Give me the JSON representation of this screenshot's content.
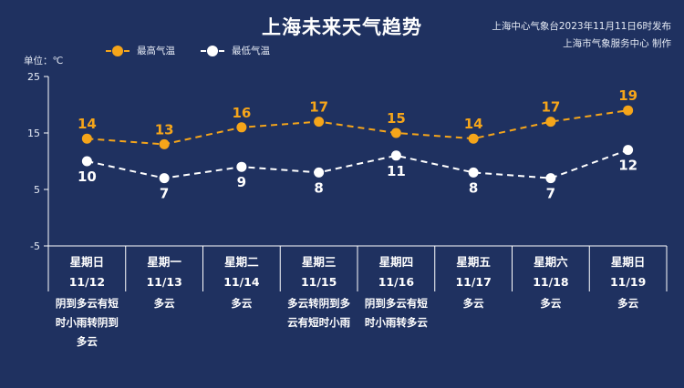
{
  "title": "上海未来天气趋势",
  "source": {
    "line1": "上海中心气象台2023年11月11日6时发布",
    "line2": "上海市气象服务中心 制作"
  },
  "unit_label": "单位：℃",
  "colors": {
    "background": "#1f3160",
    "high": "#f5a51a",
    "low": "#ffffff"
  },
  "chart_data": {
    "type": "line",
    "categories": [
      "星期日",
      "星期一",
      "星期二",
      "星期三",
      "星期四",
      "星期五",
      "星期六",
      "星期日"
    ],
    "dates": [
      "11/12",
      "11/13",
      "11/14",
      "11/15",
      "11/16",
      "11/17",
      "11/18",
      "11/19"
    ],
    "weather": [
      [
        "阴到多云有短",
        "时小雨转阴到",
        "多云"
      ],
      [
        "多云"
      ],
      [
        "多云"
      ],
      [
        "多云转阴到多",
        "云有短时小雨"
      ],
      [
        "阴到多云有短",
        "时小雨转多云"
      ],
      [
        "多云"
      ],
      [
        "多云"
      ],
      [
        "多云"
      ]
    ],
    "series": [
      {
        "name": "最高气温",
        "values": [
          14,
          13,
          16,
          17,
          15,
          14,
          17,
          19
        ],
        "color": "#f5a51a"
      },
      {
        "name": "最低气温",
        "values": [
          10,
          7,
          9,
          8,
          11,
          8,
          7,
          12
        ],
        "color": "#ffffff"
      }
    ],
    "yticks": [
      25,
      15,
      5,
      -5
    ],
    "ylim": [
      -5,
      25
    ],
    "grid": false,
    "legend": "top-left"
  }
}
